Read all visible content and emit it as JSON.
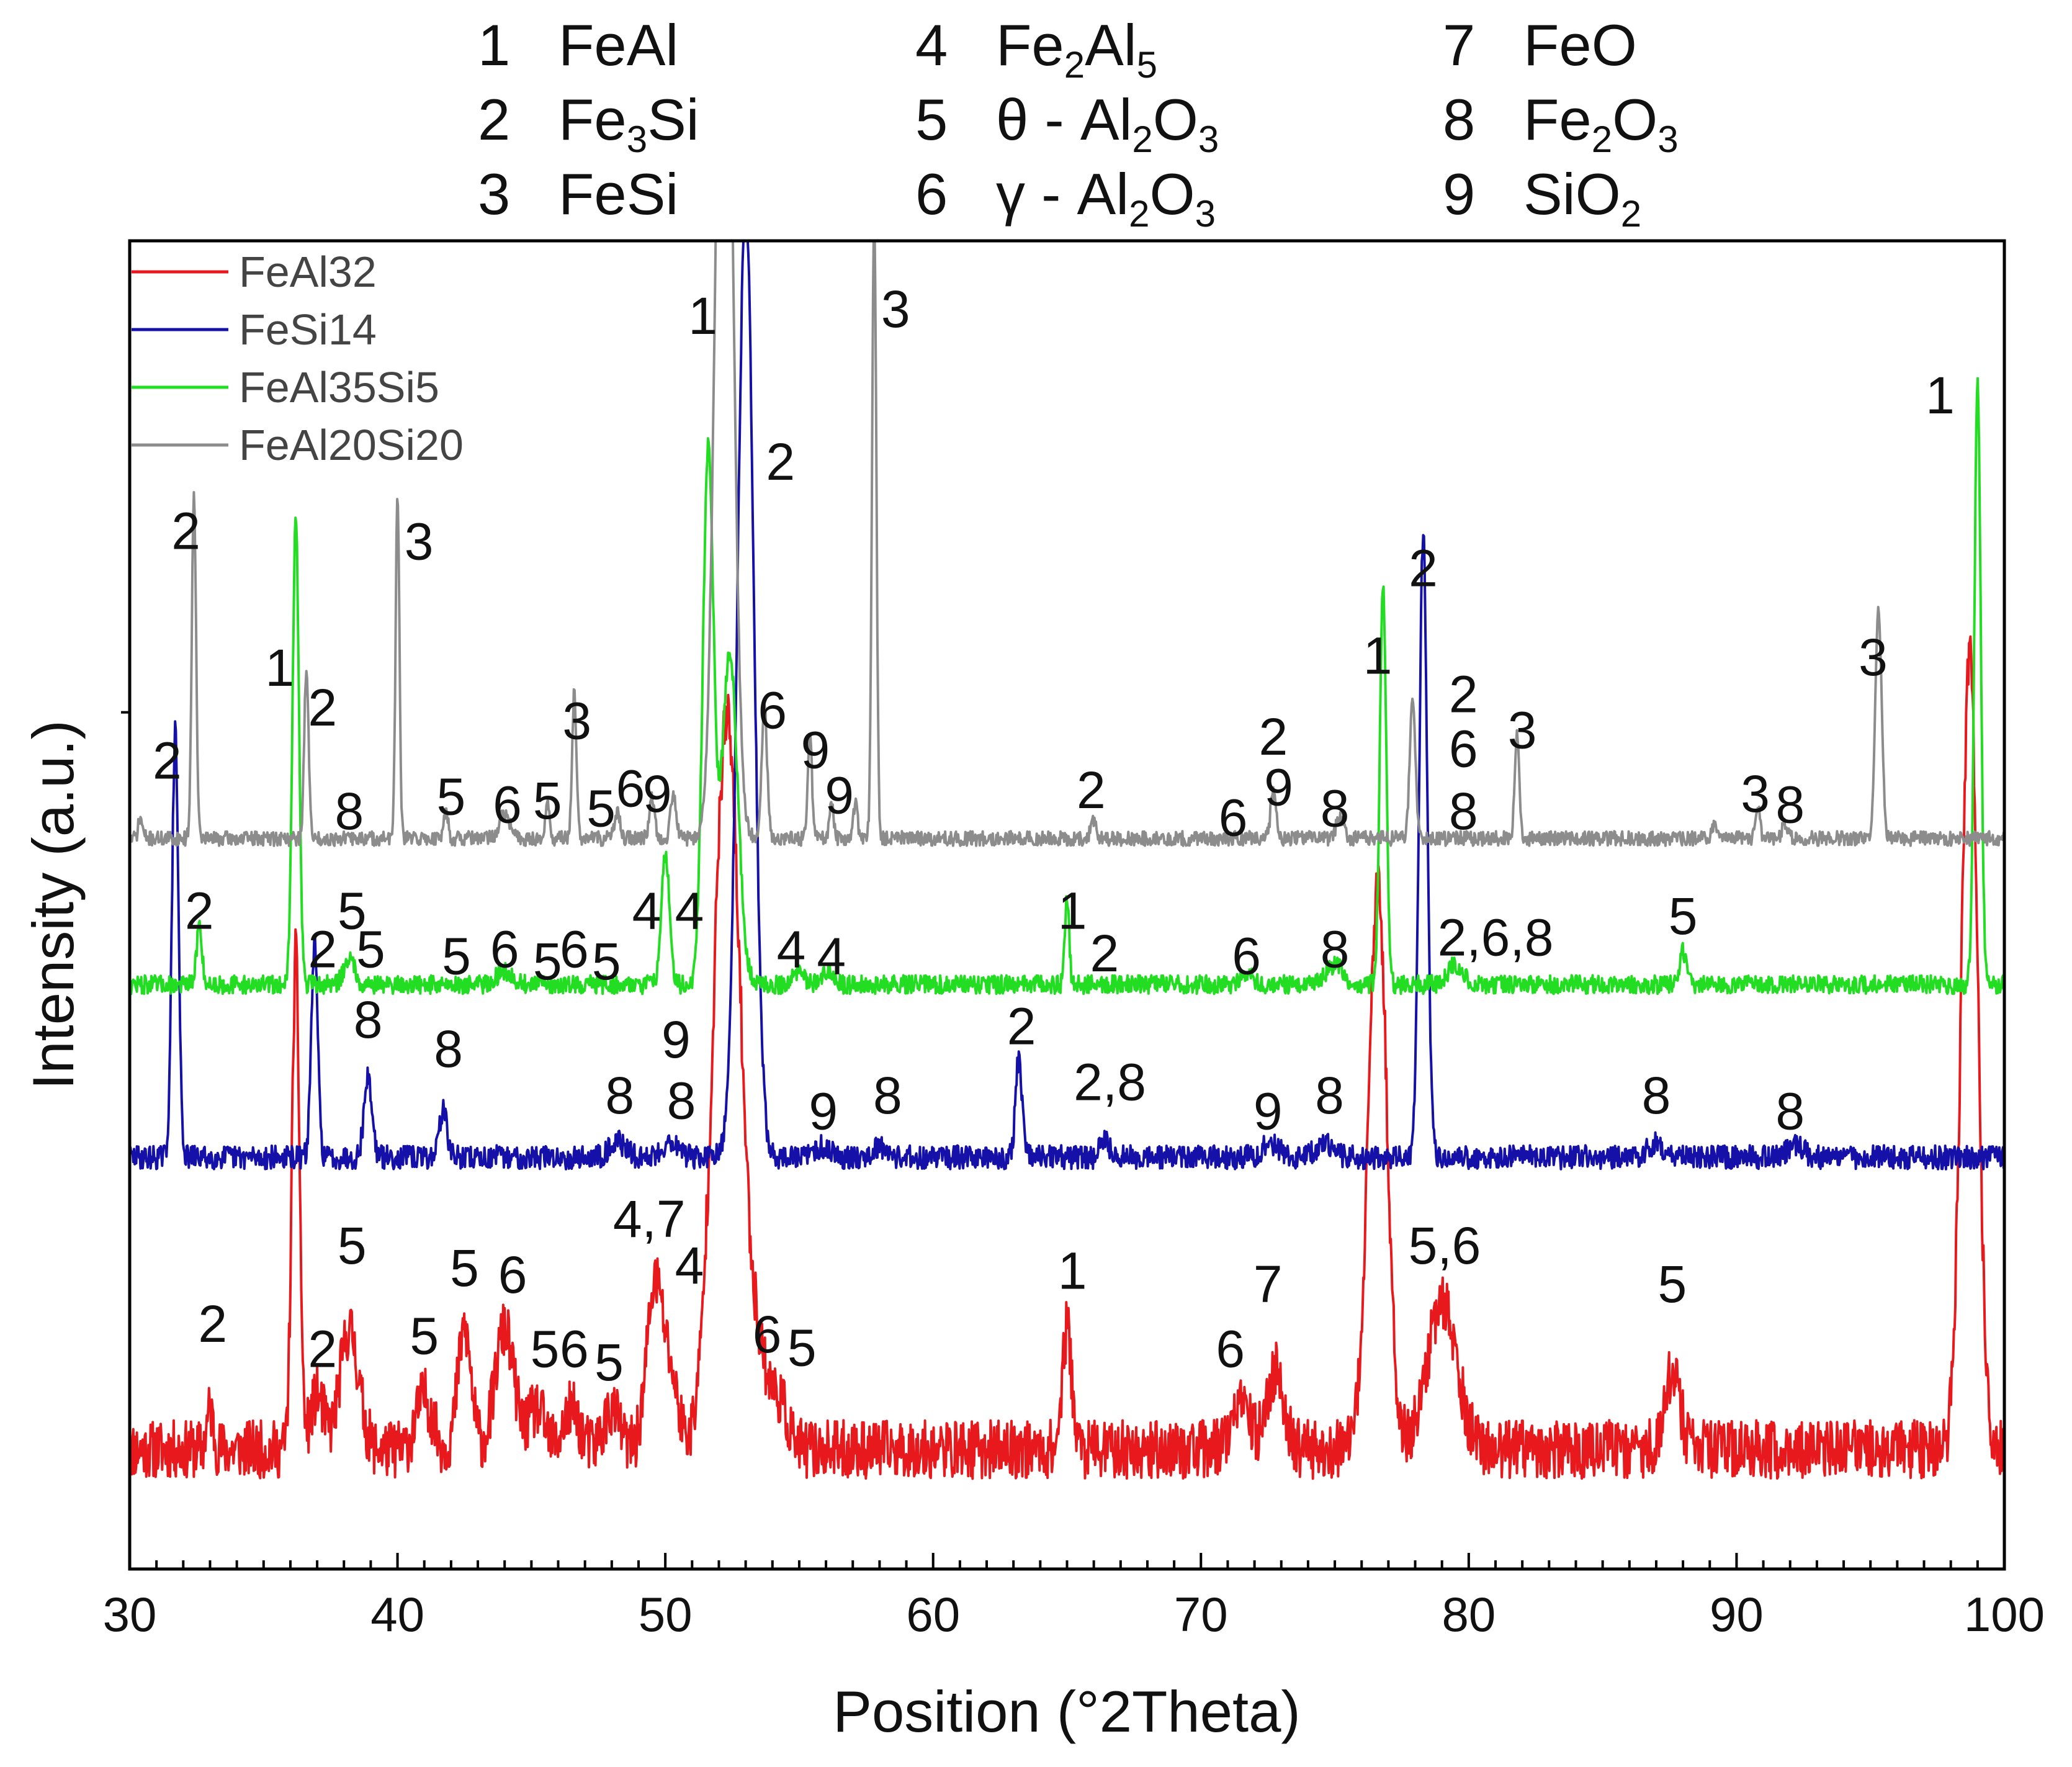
{
  "chart_data": {
    "type": "line",
    "title": "",
    "xlabel": "Position (°2Theta)",
    "ylabel": "Intensity (a.u.)",
    "xlim": [
      30,
      100
    ],
    "ylim": [
      0,
      100
    ],
    "x_ticks": [
      "30",
      "40",
      "50",
      "60",
      "70",
      "80",
      "90",
      "100"
    ],
    "phase_key": [
      {
        "num": "1",
        "parts": [
          [
            "n",
            "FeAl"
          ]
        ]
      },
      {
        "num": "2",
        "parts": [
          [
            "n",
            "Fe"
          ],
          [
            "s",
            "3"
          ],
          [
            "n",
            "Si"
          ]
        ]
      },
      {
        "num": "3",
        "parts": [
          [
            "n",
            "FeSi"
          ]
        ]
      },
      {
        "num": "4",
        "parts": [
          [
            "n",
            "Fe"
          ],
          [
            "s",
            "2"
          ],
          [
            "n",
            "Al"
          ],
          [
            "s",
            "5"
          ]
        ]
      },
      {
        "num": "5",
        "parts": [
          [
            "n",
            "θ - Al"
          ],
          [
            "s",
            "2"
          ],
          [
            "n",
            "O"
          ],
          [
            "s",
            "3"
          ]
        ]
      },
      {
        "num": "6",
        "parts": [
          [
            "n",
            "γ - Al"
          ],
          [
            "s",
            "2"
          ],
          [
            "n",
            "O"
          ],
          [
            "s",
            "3"
          ]
        ]
      },
      {
        "num": "7",
        "parts": [
          [
            "n",
            "FeO"
          ]
        ]
      },
      {
        "num": "8",
        "parts": [
          [
            "n",
            "Fe"
          ],
          [
            "s",
            "2"
          ],
          [
            "n",
            "O"
          ],
          [
            "s",
            "3"
          ]
        ]
      },
      {
        "num": "9",
        "parts": [
          [
            "n",
            "SiO"
          ],
          [
            "s",
            "2"
          ]
        ]
      }
    ],
    "series": [
      {
        "name": "FeAl32",
        "color": "#e8191c",
        "baseline": 9,
        "noise": 2.2,
        "seed": 11,
        "peaks": [
          [
            33.0,
            3,
            0.12
          ],
          [
            36.2,
            37,
            0.14
          ],
          [
            37.0,
            4,
            0.25
          ],
          [
            38.2,
            9,
            0.35
          ],
          [
            41.0,
            4,
            0.3
          ],
          [
            42.5,
            9,
            0.25
          ],
          [
            44.0,
            9,
            0.35
          ],
          [
            45.2,
            3,
            0.3
          ],
          [
            46.5,
            3,
            0.3
          ],
          [
            48.0,
            3,
            0.3
          ],
          [
            49.6,
            12,
            0.3
          ],
          [
            50.2,
            5,
            0.3
          ],
          [
            52.3,
            55,
            0.5
          ],
          [
            53.5,
            6,
            0.4
          ],
          [
            54.3,
            3,
            0.3
          ],
          [
            65.0,
            9,
            0.18
          ],
          [
            71.5,
            3,
            0.4
          ],
          [
            72.8,
            6,
            0.3
          ],
          [
            76.6,
            42,
            0.35
          ],
          [
            79.0,
            11,
            0.55
          ],
          [
            87.6,
            6,
            0.28
          ],
          [
            98.7,
            60,
            0.3
          ]
        ]
      },
      {
        "name": "FeSi14",
        "color": "#1410a8",
        "baseline": 31,
        "noise": 0.9,
        "seed": 29,
        "peaks": [
          [
            31.7,
            32,
            0.12
          ],
          [
            36.9,
            16,
            0.12
          ],
          [
            38.9,
            6,
            0.15
          ],
          [
            41.7,
            3.5,
            0.15
          ],
          [
            48.2,
            1.2,
            0.3
          ],
          [
            50.2,
            1.2,
            0.3
          ],
          [
            53.0,
            72,
            0.3
          ],
          [
            55.9,
            0.8,
            0.3
          ],
          [
            58.0,
            0.8,
            0.3
          ],
          [
            63.2,
            7.5,
            0.12
          ],
          [
            66.4,
            1.5,
            0.15
          ],
          [
            72.6,
            1,
            0.3
          ],
          [
            74.6,
            1,
            0.3
          ],
          [
            78.3,
            47,
            0.15
          ],
          [
            87.0,
            1,
            0.3
          ],
          [
            92.2,
            0.8,
            0.3
          ]
        ]
      },
      {
        "name": "FeAl35Si5",
        "color": "#22dd22",
        "baseline": 44,
        "noise": 0.7,
        "seed": 47,
        "peaks": [
          [
            32.6,
            4.5,
            0.1
          ],
          [
            36.2,
            35,
            0.12
          ],
          [
            38.2,
            2,
            0.2
          ],
          [
            44.0,
            1,
            0.3
          ],
          [
            50.0,
            10,
            0.15
          ],
          [
            51.6,
            40,
            0.2
          ],
          [
            52.4,
            25,
            0.3
          ],
          [
            55.0,
            1,
            0.2
          ],
          [
            56.0,
            1,
            0.2
          ],
          [
            65.0,
            6.5,
            0.08
          ],
          [
            71.7,
            1,
            0.2
          ],
          [
            75.0,
            1.5,
            0.3
          ],
          [
            76.8,
            30,
            0.12
          ],
          [
            79.5,
            1.5,
            0.3
          ],
          [
            88.0,
            2.5,
            0.12
          ],
          [
            99.0,
            45,
            0.12
          ]
        ]
      },
      {
        "name": "FeAl20Si20",
        "color": "#8c8c8c",
        "baseline": 55,
        "noise": 0.55,
        "seed": 71,
        "peaks": [
          [
            30.4,
            1.5,
            0.08
          ],
          [
            32.4,
            26,
            0.08
          ],
          [
            36.6,
            13,
            0.08
          ],
          [
            40.0,
            26,
            0.07
          ],
          [
            41.8,
            2.2,
            0.08
          ],
          [
            44.0,
            1.8,
            0.2
          ],
          [
            45.6,
            2.5,
            0.08
          ],
          [
            46.6,
            11,
            0.08
          ],
          [
            48.2,
            2,
            0.1
          ],
          [
            49.5,
            3.2,
            0.1
          ],
          [
            50.3,
            3.5,
            0.1
          ],
          [
            52.2,
            80,
            0.3
          ],
          [
            53.7,
            10,
            0.1
          ],
          [
            55.4,
            7.5,
            0.08
          ],
          [
            56.2,
            2.5,
            0.08
          ],
          [
            57.1,
            2.5,
            0.08
          ],
          [
            57.8,
            47,
            0.08
          ],
          [
            66.0,
            1.5,
            0.1
          ],
          [
            72.7,
            3.5,
            0.1
          ],
          [
            75.2,
            1.5,
            0.15
          ],
          [
            77.9,
            11,
            0.1
          ],
          [
            81.8,
            8,
            0.08
          ],
          [
            89.2,
            1,
            0.1
          ],
          [
            90.8,
            2.5,
            0.08
          ],
          [
            91.8,
            1.3,
            0.1
          ],
          [
            95.3,
            17,
            0.12
          ]
        ]
      }
    ],
    "legend": {
      "position": "top-left",
      "entries": [
        "FeAl32",
        "FeSi14",
        "FeAl35Si5",
        "FeAl20Si20"
      ]
    },
    "peak_labels": [
      {
        "text": "2",
        "x": 32.1,
        "y": 76.8
      },
      {
        "text": "3",
        "x": 40.8,
        "y": 76.0
      },
      {
        "text": "1",
        "x": 35.6,
        "y": 66.5
      },
      {
        "text": "2",
        "x": 37.2,
        "y": 63.5
      },
      {
        "text": "3",
        "x": 46.7,
        "y": 62.5
      },
      {
        "text": "1",
        "x": 51.4,
        "y": 93.0
      },
      {
        "text": "3",
        "x": 58.6,
        "y": 93.5
      },
      {
        "text": "2",
        "x": 54.3,
        "y": 82.0
      },
      {
        "text": "1",
        "x": 97.6,
        "y": 87.0
      },
      {
        "text": "2",
        "x": 31.4,
        "y": 59.5
      },
      {
        "text": "8",
        "x": 38.2,
        "y": 55.7
      },
      {
        "text": "5",
        "x": 42.0,
        "y": 56.8
      },
      {
        "text": "6",
        "x": 44.1,
        "y": 56.2
      },
      {
        "text": "5",
        "x": 45.6,
        "y": 56.5
      },
      {
        "text": "5",
        "x": 47.6,
        "y": 55.9
      },
      {
        "text": "6",
        "x": 48.7,
        "y": 57.4
      },
      {
        "text": "9",
        "x": 49.7,
        "y": 57.0
      },
      {
        "text": "6",
        "x": 54.0,
        "y": 63.3
      },
      {
        "text": "9",
        "x": 55.6,
        "y": 60.3
      },
      {
        "text": "9",
        "x": 56.5,
        "y": 56.9
      },
      {
        "text": "2",
        "x": 65.9,
        "y": 57.3
      },
      {
        "text": "2",
        "x": 72.7,
        "y": 61.3
      },
      {
        "text": "6",
        "x": 71.2,
        "y": 55.2
      },
      {
        "text": "9",
        "x": 72.9,
        "y": 57.5
      },
      {
        "text": "8",
        "x": 75.0,
        "y": 55.9
      },
      {
        "text": "1",
        "x": 76.6,
        "y": 67.4
      },
      {
        "text": "2",
        "x": 78.3,
        "y": 74.0
      },
      {
        "text": "2",
        "x": 79.8,
        "y": 64.5
      },
      {
        "text": "6",
        "x": 79.8,
        "y": 60.4
      },
      {
        "text": "8",
        "x": 79.8,
        "y": 55.7
      },
      {
        "text": "3",
        "x": 82.0,
        "y": 61.8
      },
      {
        "text": "3",
        "x": 95.1,
        "y": 67.3
      },
      {
        "text": "3",
        "x": 90.7,
        "y": 57.0
      },
      {
        "text": "8",
        "x": 92.0,
        "y": 56.2
      },
      {
        "text": "2",
        "x": 32.6,
        "y": 48.2
      },
      {
        "text": "2",
        "x": 37.2,
        "y": 45.3
      },
      {
        "text": "5",
        "x": 38.3,
        "y": 48.2
      },
      {
        "text": "5",
        "x": 39.0,
        "y": 45.3
      },
      {
        "text": "5",
        "x": 42.2,
        "y": 44.8
      },
      {
        "text": "6",
        "x": 44.0,
        "y": 45.3
      },
      {
        "text": "5",
        "x": 45.6,
        "y": 44.4
      },
      {
        "text": "6",
        "x": 46.6,
        "y": 45.3
      },
      {
        "text": "5",
        "x": 47.8,
        "y": 44.4
      },
      {
        "text": "4",
        "x": 49.3,
        "y": 48.2
      },
      {
        "text": "4",
        "x": 50.9,
        "y": 48.2
      },
      {
        "text": "4",
        "x": 54.7,
        "y": 45.3
      },
      {
        "text": "4",
        "x": 56.2,
        "y": 44.8
      },
      {
        "text": "1",
        "x": 65.2,
        "y": 48.2
      },
      {
        "text": "2",
        "x": 66.4,
        "y": 45.0
      },
      {
        "text": "6",
        "x": 71.7,
        "y": 44.8
      },
      {
        "text": "8",
        "x": 75.0,
        "y": 45.3
      },
      {
        "text": "2,6,8",
        "x": 81.0,
        "y": 46.2
      },
      {
        "text": "5",
        "x": 88.0,
        "y": 47.8
      },
      {
        "text": "8",
        "x": 38.9,
        "y": 40.0
      },
      {
        "text": "8",
        "x": 41.9,
        "y": 37.8
      },
      {
        "text": "8",
        "x": 48.3,
        "y": 34.3
      },
      {
        "text": "9",
        "x": 50.4,
        "y": 38.5
      },
      {
        "text": "8",
        "x": 50.6,
        "y": 33.9
      },
      {
        "text": "9",
        "x": 55.9,
        "y": 33.1
      },
      {
        "text": "8",
        "x": 58.3,
        "y": 34.3
      },
      {
        "text": "2",
        "x": 63.3,
        "y": 39.5
      },
      {
        "text": "2,8",
        "x": 66.6,
        "y": 35.3
      },
      {
        "text": "9",
        "x": 72.5,
        "y": 33.1
      },
      {
        "text": "8",
        "x": 74.8,
        "y": 34.3
      },
      {
        "text": "8",
        "x": 87.0,
        "y": 34.3
      },
      {
        "text": "8",
        "x": 92.0,
        "y": 33.1
      },
      {
        "text": "2",
        "x": 33.1,
        "y": 17.1
      },
      {
        "text": "5",
        "x": 38.3,
        "y": 23.0
      },
      {
        "text": "2",
        "x": 37.2,
        "y": 15.2
      },
      {
        "text": "5",
        "x": 41.0,
        "y": 16.2
      },
      {
        "text": "5",
        "x": 42.5,
        "y": 21.3
      },
      {
        "text": "6",
        "x": 44.3,
        "y": 20.8
      },
      {
        "text": "5",
        "x": 45.5,
        "y": 15.2
      },
      {
        "text": "6",
        "x": 46.6,
        "y": 15.2
      },
      {
        "text": "5",
        "x": 47.9,
        "y": 14.2
      },
      {
        "text": "4,7",
        "x": 49.4,
        "y": 25.0
      },
      {
        "text": "4",
        "x": 50.9,
        "y": 21.5
      },
      {
        "text": "6",
        "x": 53.8,
        "y": 16.3
      },
      {
        "text": "5",
        "x": 55.1,
        "y": 15.3
      },
      {
        "text": "1",
        "x": 65.2,
        "y": 21.1
      },
      {
        "text": "7",
        "x": 72.5,
        "y": 20.1
      },
      {
        "text": "6",
        "x": 71.1,
        "y": 15.2
      },
      {
        "text": "5,6",
        "x": 79.1,
        "y": 23.0
      },
      {
        "text": "5",
        "x": 87.6,
        "y": 20.1
      }
    ]
  }
}
